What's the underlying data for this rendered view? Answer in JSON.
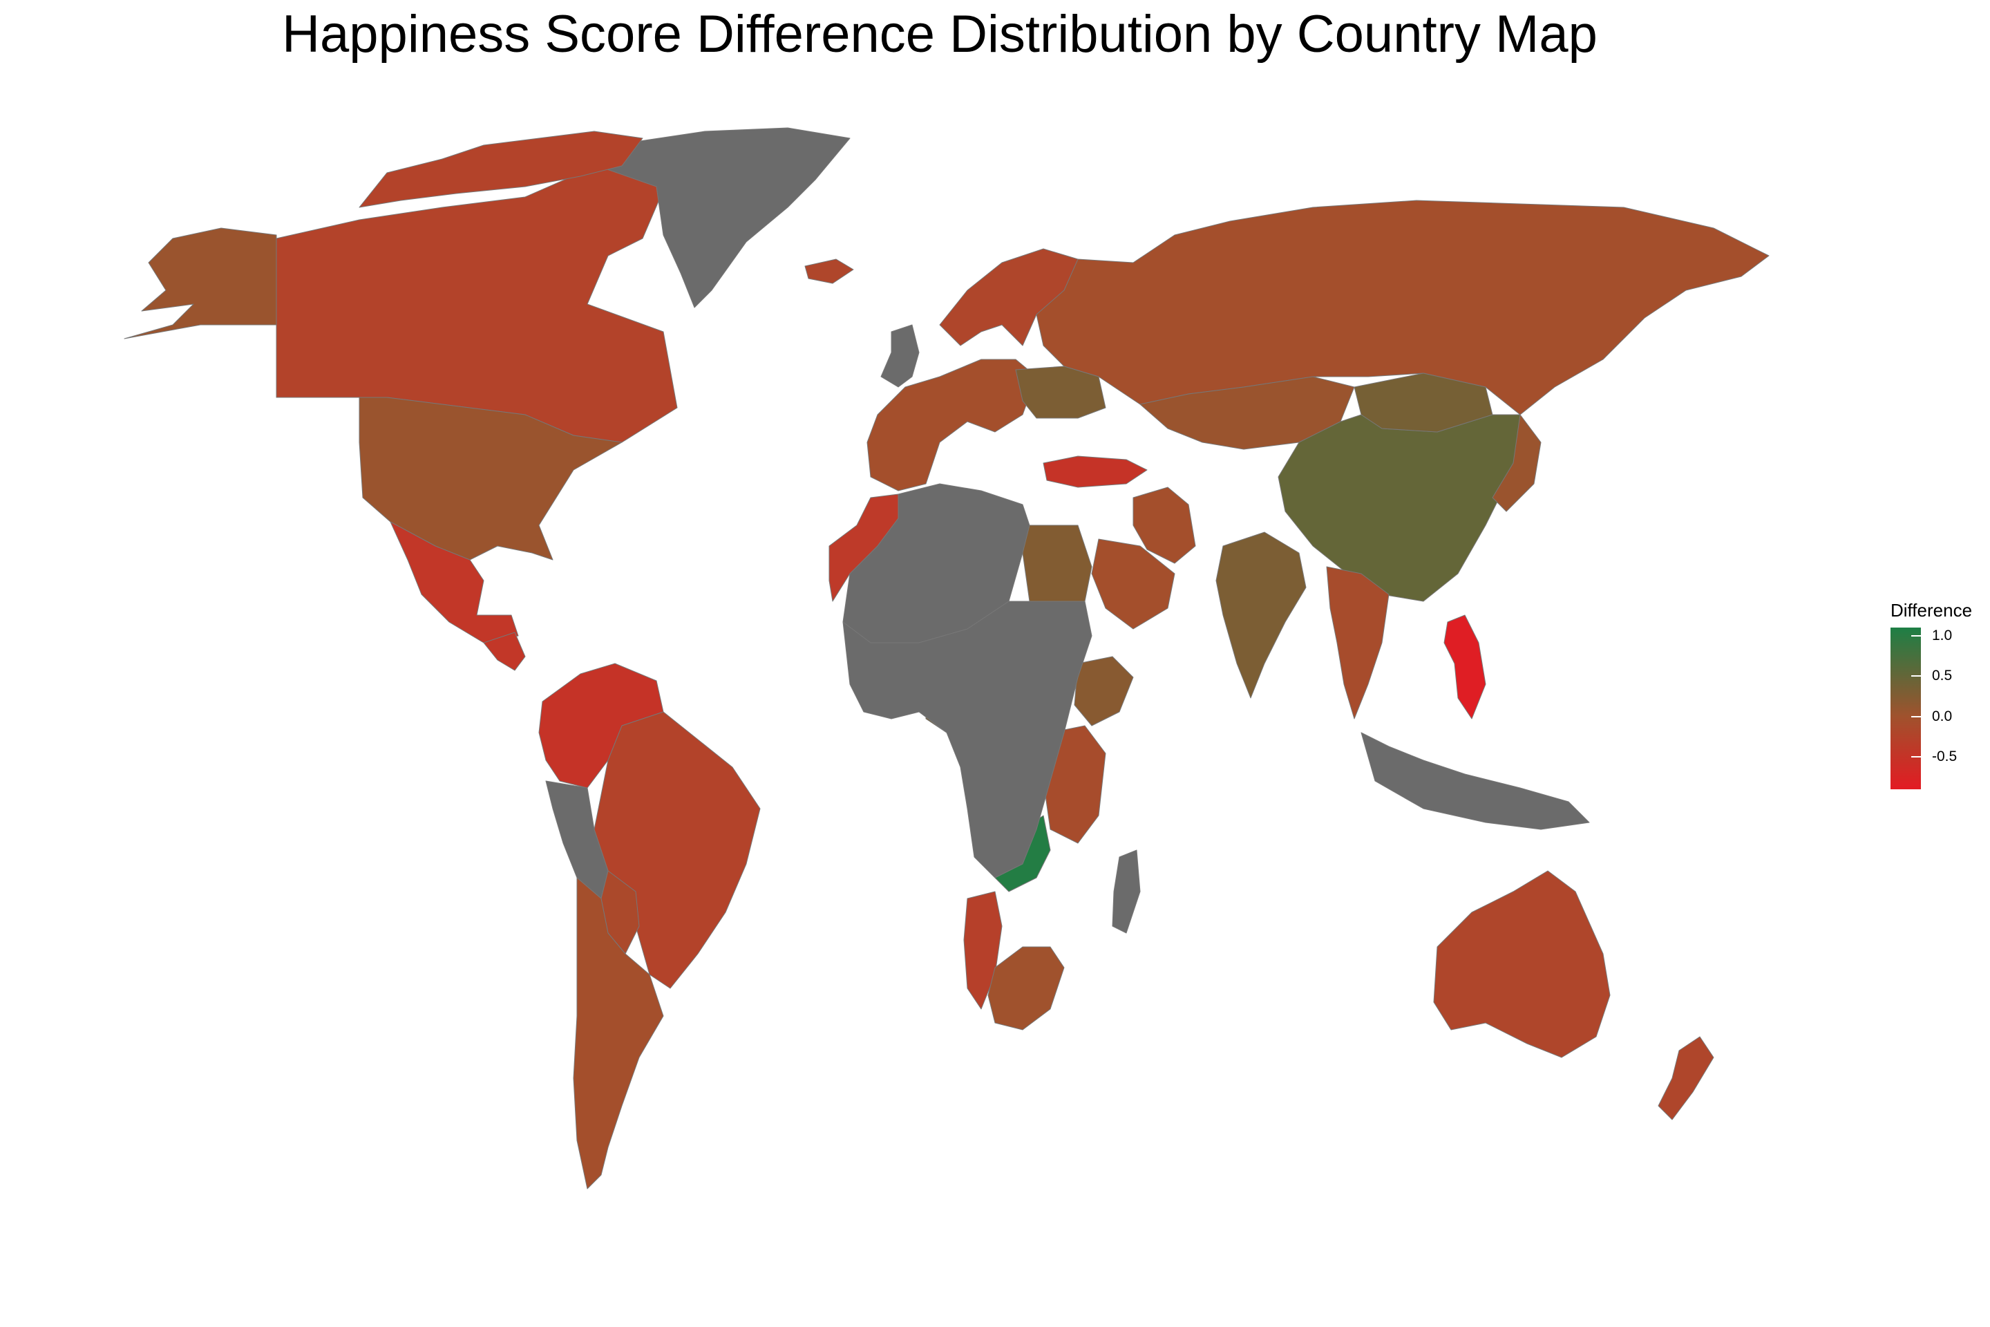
{
  "title": "Happiness Score Difference Distribution by Country Map",
  "legend": {
    "title": "Difference",
    "ticks": [
      "1.0",
      "0.5",
      "0.0",
      "-0.5"
    ],
    "tick_values": [
      1.0,
      0.5,
      0.0,
      -0.5
    ],
    "range": [
      -0.9,
      1.1
    ],
    "colors": {
      "high": "#1d7f45",
      "mid": "#a0522d",
      "low": "#e31b23"
    }
  },
  "colors": {
    "no_data": "#6b6b6b",
    "background": "#ffffff",
    "border": "#777777"
  },
  "countries": [
    {
      "name": "Canada",
      "value": -0.25
    },
    {
      "name": "Alaska (USA)",
      "value": 0.05
    },
    {
      "name": "United States",
      "value": 0.05
    },
    {
      "name": "Mexico",
      "value": -0.45
    },
    {
      "name": "Central America",
      "value": -0.45
    },
    {
      "name": "Greenland",
      "value": null
    },
    {
      "name": "Colombia / Venezuela",
      "value": -0.5
    },
    {
      "name": "Brazil",
      "value": -0.25
    },
    {
      "name": "Peru",
      "value": null
    },
    {
      "name": "Bolivia",
      "value": -0.15
    },
    {
      "name": "Argentina / Chile",
      "value": -0.05
    },
    {
      "name": "Russia",
      "value": -0.05
    },
    {
      "name": "Scandinavia",
      "value": -0.2
    },
    {
      "name": "Western Europe",
      "value": -0.05
    },
    {
      "name": "United Kingdom",
      "value": null
    },
    {
      "name": "Ukraine",
      "value": 0.3
    },
    {
      "name": "Turkey",
      "value": -0.5
    },
    {
      "name": "Kazakhstan / Central Asia",
      "value": 0.05
    },
    {
      "name": "China",
      "value": 0.5
    },
    {
      "name": "Mongolia",
      "value": 0.35
    },
    {
      "name": "India",
      "value": 0.3
    },
    {
      "name": "Iran",
      "value": -0.05
    },
    {
      "name": "Saudi Arabia",
      "value": -0.05
    },
    {
      "name": "Egypt",
      "value": 0.25
    },
    {
      "name": "Morocco",
      "value": -0.4
    },
    {
      "name": "North Africa",
      "value": null
    },
    {
      "name": "Nigeria",
      "value": 0.35
    },
    {
      "name": "Ethiopia",
      "value": 0.2
    },
    {
      "name": "Kenya / Tanzania",
      "value": -0.1
    },
    {
      "name": "Zambia",
      "value": 1.05
    },
    {
      "name": "Namibia",
      "value": -0.3
    },
    {
      "name": "South Africa",
      "value": 0.0
    },
    {
      "name": "Central Africa",
      "value": null
    },
    {
      "name": "Madagascar",
      "value": null
    },
    {
      "name": "Southeast Asia",
      "value": -0.1
    },
    {
      "name": "Philippines",
      "value": -0.85
    },
    {
      "name": "Indonesia",
      "value": null
    },
    {
      "name": "Japan",
      "value": 0.05
    },
    {
      "name": "Australia",
      "value": -0.2
    },
    {
      "name": "New Zealand",
      "value": -0.2
    },
    {
      "name": "Iceland",
      "value": -0.2
    },
    {
      "name": "Arctic islands",
      "value": -0.25
    }
  ]
}
